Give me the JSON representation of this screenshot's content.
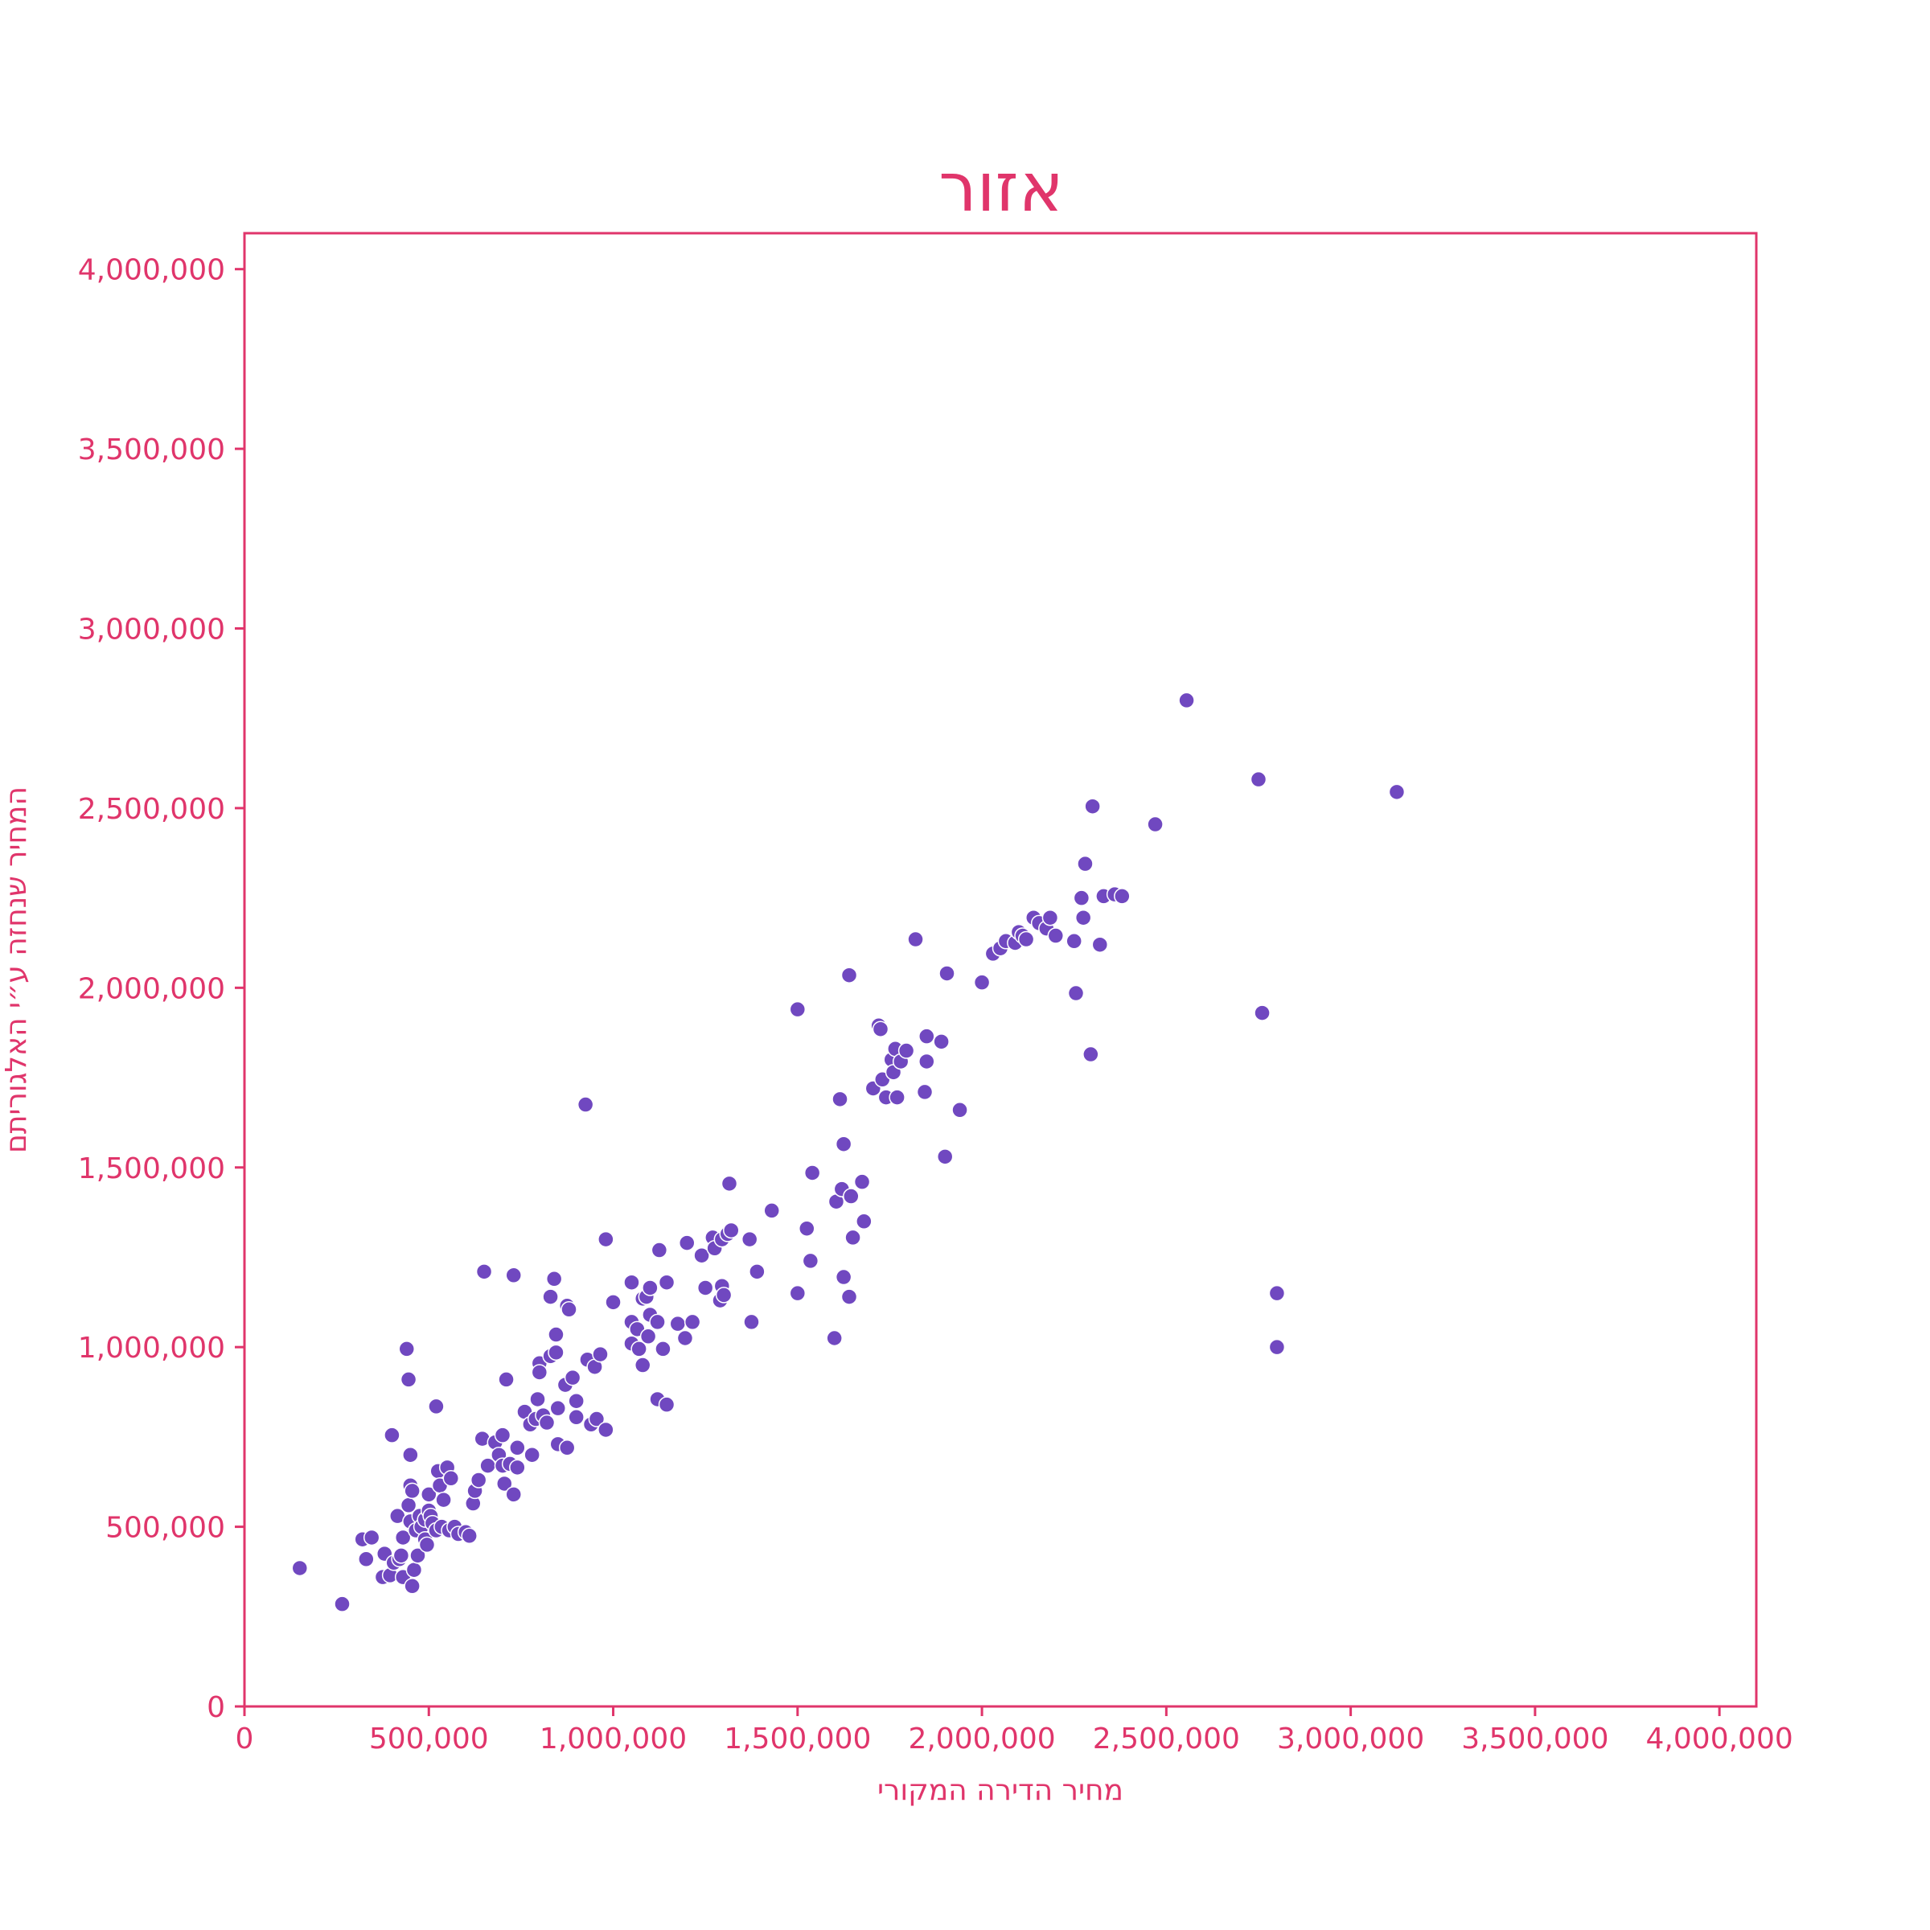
{
  "chart_data": {
    "type": "scatter",
    "title": "אזור",
    "xlabel": "מחיר הדירה המקורי",
    "ylabel": "המחיר שנחזה ע״י האלגוריתם",
    "xlim": [
      0,
      4100000
    ],
    "ylim": [
      0,
      4100000
    ],
    "xticks": [
      0,
      500000,
      1000000,
      1500000,
      2000000,
      2500000,
      3000000,
      3500000,
      4000000
    ],
    "yticks": [
      0,
      500000,
      1000000,
      1500000,
      2000000,
      2500000,
      3000000,
      3500000,
      4000000
    ],
    "xtick_labels": [
      "0",
      "500,000",
      "1,000,000",
      "1,500,000",
      "2,000,000",
      "2,500,000",
      "3,000,000",
      "3,500,000",
      "4,000,000"
    ],
    "ytick_labels": [
      "0",
      "500,000",
      "1,000,000",
      "1,500,000",
      "2,000,000",
      "2,500,000",
      "3,000,000",
      "3,500,000",
      "4,000,000"
    ],
    "grid": false,
    "colors": {
      "accent": "#e0356b",
      "points": "#7048c0",
      "point_edge": "#ffffff"
    },
    "points": [
      [
        150000,
        385000
      ],
      [
        265000,
        285000
      ],
      [
        320000,
        465000
      ],
      [
        330000,
        410000
      ],
      [
        345000,
        470000
      ],
      [
        375000,
        360000
      ],
      [
        380000,
        425000
      ],
      [
        395000,
        365000
      ],
      [
        400000,
        755000
      ],
      [
        405000,
        400000
      ],
      [
        415000,
        530000
      ],
      [
        420000,
        410000
      ],
      [
        425000,
        420000
      ],
      [
        430000,
        470000
      ],
      [
        430000,
        360000
      ],
      [
        440000,
        995000
      ],
      [
        445000,
        910000
      ],
      [
        445000,
        560000
      ],
      [
        450000,
        615000
      ],
      [
        450000,
        700000
      ],
      [
        450000,
        515000
      ],
      [
        455000,
        335000
      ],
      [
        455000,
        600000
      ],
      [
        460000,
        380000
      ],
      [
        465000,
        490000
      ],
      [
        470000,
        420000
      ],
      [
        475000,
        530000
      ],
      [
        480000,
        500000
      ],
      [
        490000,
        520000
      ],
      [
        490000,
        465000
      ],
      [
        495000,
        450000
      ],
      [
        500000,
        590000
      ],
      [
        500000,
        545000
      ],
      [
        505000,
        530000
      ],
      [
        510000,
        510000
      ],
      [
        520000,
        835000
      ],
      [
        520000,
        490000
      ],
      [
        525000,
        655000
      ],
      [
        530000,
        615000
      ],
      [
        535000,
        500000
      ],
      [
        540000,
        575000
      ],
      [
        550000,
        665000
      ],
      [
        555000,
        490000
      ],
      [
        560000,
        635000
      ],
      [
        570000,
        500000
      ],
      [
        580000,
        480000
      ],
      [
        600000,
        485000
      ],
      [
        610000,
        475000
      ],
      [
        620000,
        565000
      ],
      [
        625000,
        600000
      ],
      [
        635000,
        630000
      ],
      [
        645000,
        745000
      ],
      [
        650000,
        1210000
      ],
      [
        660000,
        670000
      ],
      [
        680000,
        735000
      ],
      [
        690000,
        700000
      ],
      [
        700000,
        670000
      ],
      [
        700000,
        755000
      ],
      [
        705000,
        620000
      ],
      [
        710000,
        910000
      ],
      [
        720000,
        675000
      ],
      [
        730000,
        590000
      ],
      [
        730000,
        1200000
      ],
      [
        740000,
        665000
      ],
      [
        740000,
        720000
      ],
      [
        760000,
        820000
      ],
      [
        775000,
        785000
      ],
      [
        780000,
        700000
      ],
      [
        790000,
        800000
      ],
      [
        795000,
        855000
      ],
      [
        800000,
        955000
      ],
      [
        800000,
        930000
      ],
      [
        810000,
        810000
      ],
      [
        820000,
        790000
      ],
      [
        830000,
        1140000
      ],
      [
        830000,
        975000
      ],
      [
        840000,
        1190000
      ],
      [
        845000,
        985000
      ],
      [
        845000,
        1035000
      ],
      [
        850000,
        830000
      ],
      [
        850000,
        730000
      ],
      [
        870000,
        895000
      ],
      [
        875000,
        1115000
      ],
      [
        875000,
        720000
      ],
      [
        880000,
        1105000
      ],
      [
        890000,
        915000
      ],
      [
        900000,
        850000
      ],
      [
        900000,
        805000
      ],
      [
        925000,
        1675000
      ],
      [
        930000,
        965000
      ],
      [
        940000,
        785000
      ],
      [
        950000,
        945000
      ],
      [
        955000,
        800000
      ],
      [
        965000,
        980000
      ],
      [
        980000,
        770000
      ],
      [
        980000,
        1300000
      ],
      [
        1000000,
        1125000
      ],
      [
        1050000,
        1180000
      ],
      [
        1050000,
        1070000
      ],
      [
        1050000,
        1010000
      ],
      [
        1065000,
        1050000
      ],
      [
        1070000,
        995000
      ],
      [
        1080000,
        950000
      ],
      [
        1080000,
        1135000
      ],
      [
        1090000,
        1140000
      ],
      [
        1095000,
        1030000
      ],
      [
        1100000,
        1090000
      ],
      [
        1100000,
        1165000
      ],
      [
        1120000,
        855000
      ],
      [
        1120000,
        1070000
      ],
      [
        1125000,
        1270000
      ],
      [
        1135000,
        995000
      ],
      [
        1145000,
        1180000
      ],
      [
        1145000,
        840000
      ],
      [
        1175000,
        1065000
      ],
      [
        1195000,
        1025000
      ],
      [
        1200000,
        1290000
      ],
      [
        1215000,
        1070000
      ],
      [
        1240000,
        1255000
      ],
      [
        1250000,
        1165000
      ],
      [
        1270000,
        1305000
      ],
      [
        1275000,
        1275000
      ],
      [
        1290000,
        1130000
      ],
      [
        1295000,
        1170000
      ],
      [
        1295000,
        1300000
      ],
      [
        1300000,
        1145000
      ],
      [
        1310000,
        1315000
      ],
      [
        1315000,
        1455000
      ],
      [
        1320000,
        1325000
      ],
      [
        1370000,
        1300000
      ],
      [
        1375000,
        1070000
      ],
      [
        1390000,
        1210000
      ],
      [
        1430000,
        1380000
      ],
      [
        1500000,
        1940000
      ],
      [
        1500000,
        1150000
      ],
      [
        1525000,
        1330000
      ],
      [
        1535000,
        1240000
      ],
      [
        1540000,
        1485000
      ],
      [
        1600000,
        1025000
      ],
      [
        1605000,
        1405000
      ],
      [
        1615000,
        1690000
      ],
      [
        1620000,
        1440000
      ],
      [
        1625000,
        1195000
      ],
      [
        1625000,
        1565000
      ],
      [
        1640000,
        2035000
      ],
      [
        1640000,
        1140000
      ],
      [
        1645000,
        1420000
      ],
      [
        1650000,
        1305000
      ],
      [
        1675000,
        1460000
      ],
      [
        1680000,
        1350000
      ],
      [
        1705000,
        1720000
      ],
      [
        1720000,
        1895000
      ],
      [
        1725000,
        1885000
      ],
      [
        1730000,
        1745000
      ],
      [
        1740000,
        1695000
      ],
      [
        1755000,
        1800000
      ],
      [
        1760000,
        1765000
      ],
      [
        1765000,
        1830000
      ],
      [
        1770000,
        1695000
      ],
      [
        1780000,
        1795000
      ],
      [
        1795000,
        1825000
      ],
      [
        1820000,
        2135000
      ],
      [
        1845000,
        1710000
      ],
      [
        1850000,
        1865000
      ],
      [
        1850000,
        1795000
      ],
      [
        1890000,
        1850000
      ],
      [
        1900000,
        1530000
      ],
      [
        1905000,
        2040000
      ],
      [
        1940000,
        1660000
      ],
      [
        2000000,
        2015000
      ],
      [
        2030000,
        2095000
      ],
      [
        2050000,
        2110000
      ],
      [
        2065000,
        2130000
      ],
      [
        2090000,
        2125000
      ],
      [
        2100000,
        2155000
      ],
      [
        2110000,
        2145000
      ],
      [
        2120000,
        2135000
      ],
      [
        2140000,
        2195000
      ],
      [
        2155000,
        2180000
      ],
      [
        2175000,
        2165000
      ],
      [
        2185000,
        2195000
      ],
      [
        2200000,
        2145000
      ],
      [
        2250000,
        2130000
      ],
      [
        2255000,
        1985000
      ],
      [
        2270000,
        2250000
      ],
      [
        2275000,
        2195000
      ],
      [
        2280000,
        2345000
      ],
      [
        2295000,
        1815000
      ],
      [
        2300000,
        2505000
      ],
      [
        2320000,
        2120000
      ],
      [
        2330000,
        2255000
      ],
      [
        2360000,
        2260000
      ],
      [
        2380000,
        2255000
      ],
      [
        2470000,
        2455000
      ],
      [
        2555000,
        2800000
      ],
      [
        2750000,
        2580000
      ],
      [
        2760000,
        1930000
      ],
      [
        2800000,
        1150000
      ],
      [
        2800000,
        1000000
      ],
      [
        3125000,
        2545000
      ]
    ]
  }
}
